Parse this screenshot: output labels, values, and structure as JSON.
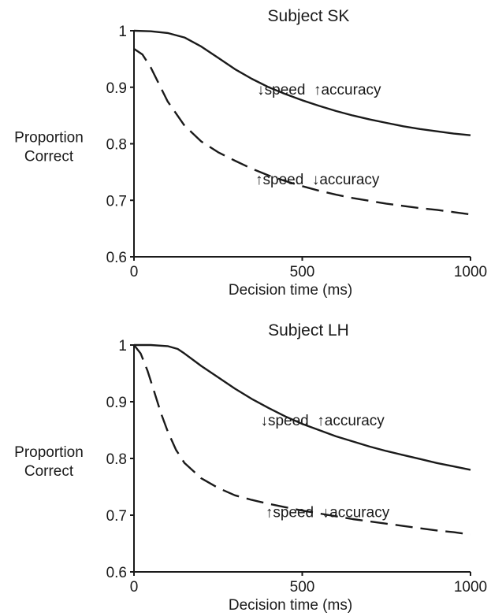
{
  "chart_data": [
    {
      "type": "line",
      "title": "Subject SK",
      "xlabel": "Decision time (ms)",
      "ylabel": "Proportion Correct",
      "xlim": [
        0,
        1000
      ],
      "ylim": [
        0.6,
        1
      ],
      "x_ticks": [
        "0",
        "500",
        "1000"
      ],
      "y_ticks": [
        "0.6",
        "0.7",
        "0.8",
        "0.9",
        "1"
      ],
      "series": [
        {
          "style": "solid",
          "x": [
            0,
            50,
            100,
            150,
            200,
            250,
            300,
            350,
            400,
            450,
            500,
            550,
            600,
            650,
            700,
            750,
            800,
            850,
            900,
            950,
            1000
          ],
          "values": [
            1.0,
            0.999,
            0.996,
            0.988,
            0.972,
            0.952,
            0.932,
            0.915,
            0.9,
            0.888,
            0.877,
            0.867,
            0.858,
            0.85,
            0.843,
            0.837,
            0.831,
            0.826,
            0.822,
            0.818,
            0.815
          ]
        },
        {
          "style": "dashed",
          "x": [
            0,
            25,
            50,
            75,
            100,
            150,
            200,
            250,
            300,
            350,
            400,
            450,
            500,
            550,
            600,
            650,
            700,
            750,
            800,
            850,
            900,
            950,
            1000
          ],
          "values": [
            0.968,
            0.958,
            0.935,
            0.905,
            0.875,
            0.832,
            0.804,
            0.785,
            0.77,
            0.756,
            0.744,
            0.734,
            0.725,
            0.717,
            0.71,
            0.704,
            0.699,
            0.694,
            0.69,
            0.686,
            0.683,
            0.679,
            0.675
          ]
        }
      ],
      "annotations": [
        {
          "text": "↓speed  ↑accuracy",
          "x": 550,
          "y": 0.897
        },
        {
          "text": "↑speed  ↓accuracy",
          "x": 545,
          "y": 0.738
        }
      ]
    },
    {
      "type": "line",
      "title": "Subject LH",
      "xlabel": "Decision time (ms)",
      "ylabel": "Proportion Correct",
      "xlim": [
        0,
        1000
      ],
      "ylim": [
        0.6,
        1
      ],
      "x_ticks": [
        "0",
        "500",
        "1000"
      ],
      "y_ticks": [
        "0.6",
        "0.7",
        "0.8",
        "0.9",
        "1"
      ],
      "series": [
        {
          "style": "solid",
          "x": [
            0,
            50,
            100,
            130,
            150,
            200,
            250,
            300,
            350,
            400,
            450,
            500,
            550,
            600,
            650,
            700,
            750,
            800,
            850,
            900,
            950,
            1000
          ],
          "values": [
            1.0,
            1.0,
            0.998,
            0.993,
            0.985,
            0.963,
            0.943,
            0.923,
            0.905,
            0.889,
            0.874,
            0.861,
            0.85,
            0.839,
            0.83,
            0.821,
            0.813,
            0.806,
            0.799,
            0.792,
            0.786,
            0.78
          ]
        },
        {
          "style": "dashed",
          "x": [
            0,
            20,
            40,
            60,
            80,
            100,
            125,
            150,
            200,
            250,
            300,
            350,
            400,
            450,
            500,
            550,
            600,
            650,
            700,
            750,
            800,
            850,
            900,
            950,
            1000
          ],
          "values": [
            1.0,
            0.985,
            0.955,
            0.918,
            0.88,
            0.848,
            0.815,
            0.792,
            0.765,
            0.748,
            0.735,
            0.727,
            0.72,
            0.714,
            0.708,
            0.703,
            0.698,
            0.693,
            0.689,
            0.685,
            0.681,
            0.677,
            0.673,
            0.67,
            0.666
          ]
        }
      ],
      "annotations": [
        {
          "text": "↓speed  ↑accuracy",
          "x": 560,
          "y": 0.868
        },
        {
          "text": "↑speed  ↓accuracy",
          "x": 575,
          "y": 0.706
        }
      ]
    }
  ]
}
